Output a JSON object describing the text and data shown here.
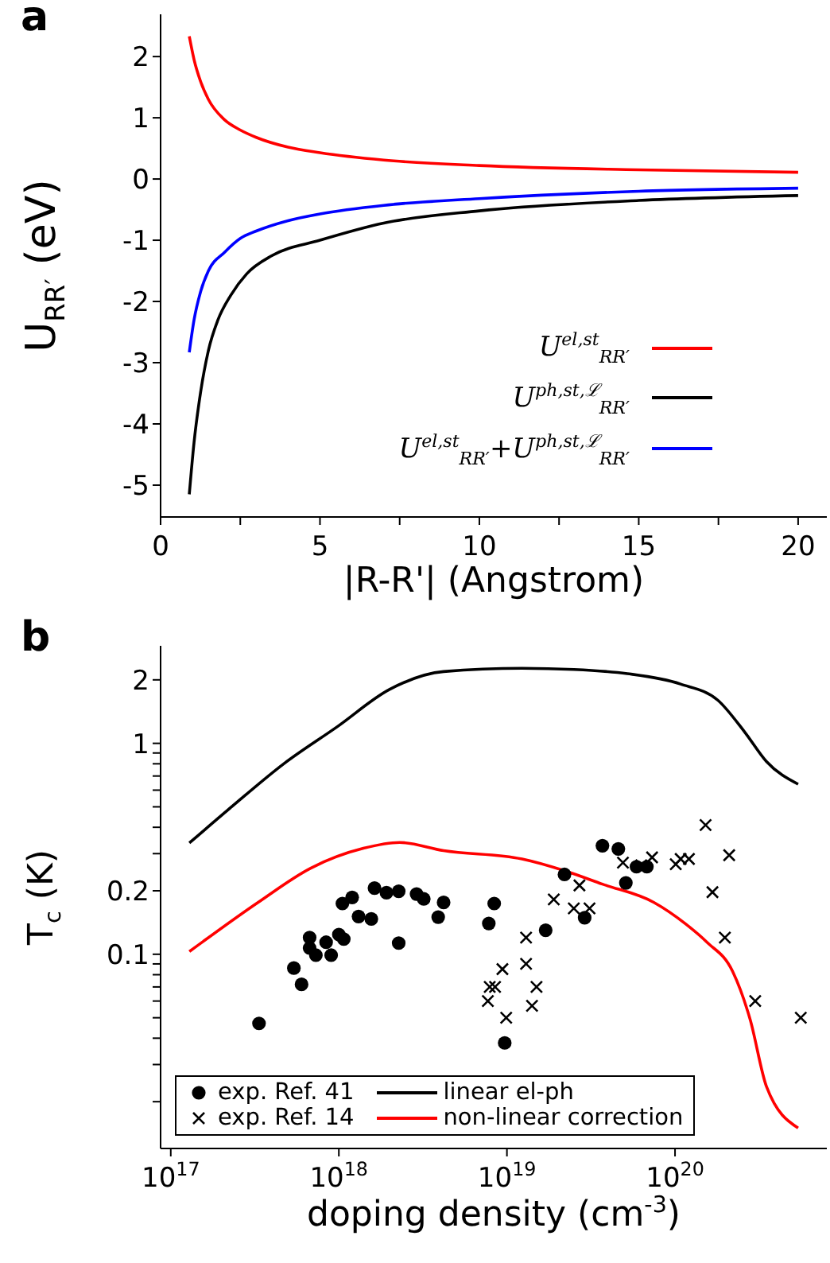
{
  "chart_data": [
    {
      "type": "line",
      "annotations": [
        "a"
      ],
      "xlabel": "|R-R'| (Angstrom)",
      "ylabel": "U$_{RR′}$ (eV)",
      "xlim": [
        0,
        20.9
      ],
      "xticks": [
        0,
        {
          "value": 2.5,
          "label": null
        },
        5,
        {
          "value": 7.5,
          "label": null
        },
        10,
        {
          "value": 12.5,
          "label": null
        },
        15,
        {
          "value": 17.5,
          "label": null
        },
        20
      ],
      "ylim": [
        -5.52,
        2.69
      ],
      "yticks": [
        -5,
        -4,
        -3,
        -2,
        -1,
        0,
        1,
        2
      ],
      "legend": "bottom right",
      "grid": false,
      "series": [
        {
          "name": "U$^{el,st}$$_{RR′}$",
          "color": "#ff0000",
          "x": [
            0.9,
            1.05,
            1.25,
            1.5,
            2,
            2.5,
            3,
            4,
            5,
            7,
            10,
            15,
            20
          ],
          "values": [
            2.33,
            1.95,
            1.6,
            1.3,
            0.97,
            0.8,
            0.68,
            0.52,
            0.43,
            0.31,
            0.22,
            0.15,
            0.11
          ]
        },
        {
          "name": "U$^{ph,st,ℒ}$$_{RR′}$",
          "color": "#000000",
          "x": [
            0.9,
            1.05,
            1.25,
            1.5,
            1.8,
            2.2,
            2.7,
            3.5,
            5,
            7,
            10,
            15,
            20
          ],
          "values": [
            -5.15,
            -4.3,
            -3.5,
            -2.8,
            -2.3,
            -1.9,
            -1.55,
            -1.25,
            -1.0,
            -0.72,
            -0.52,
            -0.35,
            -0.27
          ]
        },
        {
          "name": "U$^{el,st}$$_{RR′}$+U$^{ph,st,ℒ}$$_{RR′}$",
          "color": "#0000ff",
          "x": [
            0.9,
            1.05,
            1.25,
            1.5,
            2,
            2.5,
            3,
            4,
            5,
            7,
            10,
            15,
            20
          ],
          "values": [
            -2.83,
            -2.3,
            -1.85,
            -1.5,
            -1.2,
            -0.97,
            -0.85,
            -0.68,
            -0.57,
            -0.43,
            -0.32,
            -0.2,
            -0.15
          ]
        }
      ]
    },
    {
      "type": "line",
      "annotations": [
        "b"
      ],
      "xlabel": "doping density (cm$^{-3}$)",
      "ylabel": "T$_{c}$ (K)",
      "log": "xy",
      "xlim": [
        8.7e+16,
        8e+20
      ],
      "xticks": [
        {
          "value": 1e+17,
          "label": "10$^{17}$"
        },
        {
          "value": 1e+18,
          "label": "10$^{18}$"
        },
        {
          "value": 1e+19,
          "label": "10$^{19}$"
        },
        {
          "value": 1e+20,
          "label": "10$^{20}$"
        }
      ],
      "ylim": [
        0.012,
        2.9
      ],
      "yticks": [
        {
          "value": 0.02,
          "label": null
        },
        {
          "value": 0.03,
          "label": null
        },
        {
          "value": 0.04,
          "label": null
        },
        {
          "value": 0.05,
          "label": null
        },
        {
          "value": 0.06,
          "label": null
        },
        {
          "value": 0.07,
          "label": null
        },
        {
          "value": 0.08,
          "label": null
        },
        {
          "value": 0.09,
          "label": null
        },
        0.1,
        0.2,
        {
          "value": 0.3,
          "label": null
        },
        {
          "value": 0.4,
          "label": null
        },
        {
          "value": 0.5,
          "label": null
        },
        {
          "value": 0.6,
          "label": null
        },
        {
          "value": 0.7,
          "label": null
        },
        {
          "value": 0.8,
          "label": null
        },
        {
          "value": 0.9,
          "label": null
        },
        1,
        2
      ],
      "legend": "bottom left",
      "grid": false,
      "series": [
        {
          "name": "exp. Ref. 41",
          "type": "scatter",
          "marker": "circle",
          "color": "#000000",
          "x": [
            3.35e+17,
            5.4e+17,
            6e+17,
            6.7e+17,
            6.7e+17,
            7.3e+17,
            8.4e+17,
            9e+17,
            1e+18,
            1.07e+18,
            1.05e+18,
            1.2e+18,
            1.31e+18,
            1.56e+18,
            1.63e+18,
            1.92e+18,
            2.27e+18,
            2.27e+18,
            2.9e+18,
            3.2e+18,
            3.9e+18,
            4.2e+18,
            7.8e+18,
            8.4e+18,
            9.7e+18,
            1.7e+19,
            2.2e+19,
            2.9e+19,
            3.7e+19,
            4.6e+19,
            5.1e+19,
            5.9e+19,
            6.8e+19
          ],
          "values": [
            0.047,
            0.086,
            0.072,
            0.12,
            0.107,
            0.099,
            0.114,
            0.099,
            0.124,
            0.118,
            0.174,
            0.186,
            0.151,
            0.147,
            0.206,
            0.196,
            0.199,
            0.113,
            0.193,
            0.183,
            0.15,
            0.176,
            0.14,
            0.174,
            0.038,
            0.13,
            0.239,
            0.149,
            0.327,
            0.316,
            0.218,
            0.26,
            0.26
          ]
        },
        {
          "name": "exp. Ref. 14",
          "type": "scatter",
          "marker": "cross",
          "color": "#000000",
          "x": [
            7.7e+18,
            7.9e+18,
            8.5e+18,
            9.4e+18,
            9.9e+18,
            1.3e+19,
            1.3e+19,
            1.41e+19,
            1.5e+19,
            1.9e+19,
            2.5e+19,
            3.1e+19,
            2.7e+19,
            4.9e+19,
            6.3e+19,
            7.3e+19,
            1.01e+20,
            1.08e+20,
            1.21e+20,
            1.52e+20,
            1.67e+20,
            2.1e+20,
            1.98e+20,
            3e+20,
            5.6e+20
          ],
          "values": [
            0.06,
            0.07,
            0.07,
            0.085,
            0.05,
            0.12,
            0.09,
            0.057,
            0.07,
            0.182,
            0.165,
            0.165,
            0.212,
            0.272,
            0.264,
            0.288,
            0.267,
            0.283,
            0.283,
            0.41,
            0.197,
            0.295,
            0.12,
            0.06,
            0.05
          ]
        },
        {
          "name": "linear el-ph",
          "type": "line",
          "color": "#000000",
          "x": [
            1.29e+17,
            2.3e+17,
            4.7e+17,
            9.8e+17,
            2e+18,
            4.2e+18,
            1.23e+19,
            2.5e+19,
            5.2e+19,
            1.08e+20,
            1.8e+20,
            2.6e+20,
            3.5e+20,
            5.4e+20
          ],
          "values": [
            0.337,
            0.5,
            0.8,
            1.2,
            1.8,
            2.19,
            2.27,
            2.24,
            2.14,
            1.91,
            1.6,
            1.13,
            0.82,
            0.64
          ]
        },
        {
          "name": "non-linear correction",
          "type": "line",
          "color": "#ff0000",
          "x": [
            1.29e+17,
            3.3e+17,
            6.8e+17,
            1.4e+18,
            2.3e+18,
            4.2e+18,
            1.23e+19,
            2.2e+19,
            3.7e+19,
            7.5e+19,
            1.16e+20,
            1.55e+20,
            2.2e+20,
            2.8e+20,
            3.5e+20,
            5.4e+20
          ],
          "values": [
            0.103,
            0.176,
            0.256,
            0.318,
            0.339,
            0.31,
            0.283,
            0.249,
            0.215,
            0.176,
            0.139,
            0.114,
            0.083,
            0.049,
            0.0236,
            0.015
          ]
        }
      ]
    }
  ]
}
